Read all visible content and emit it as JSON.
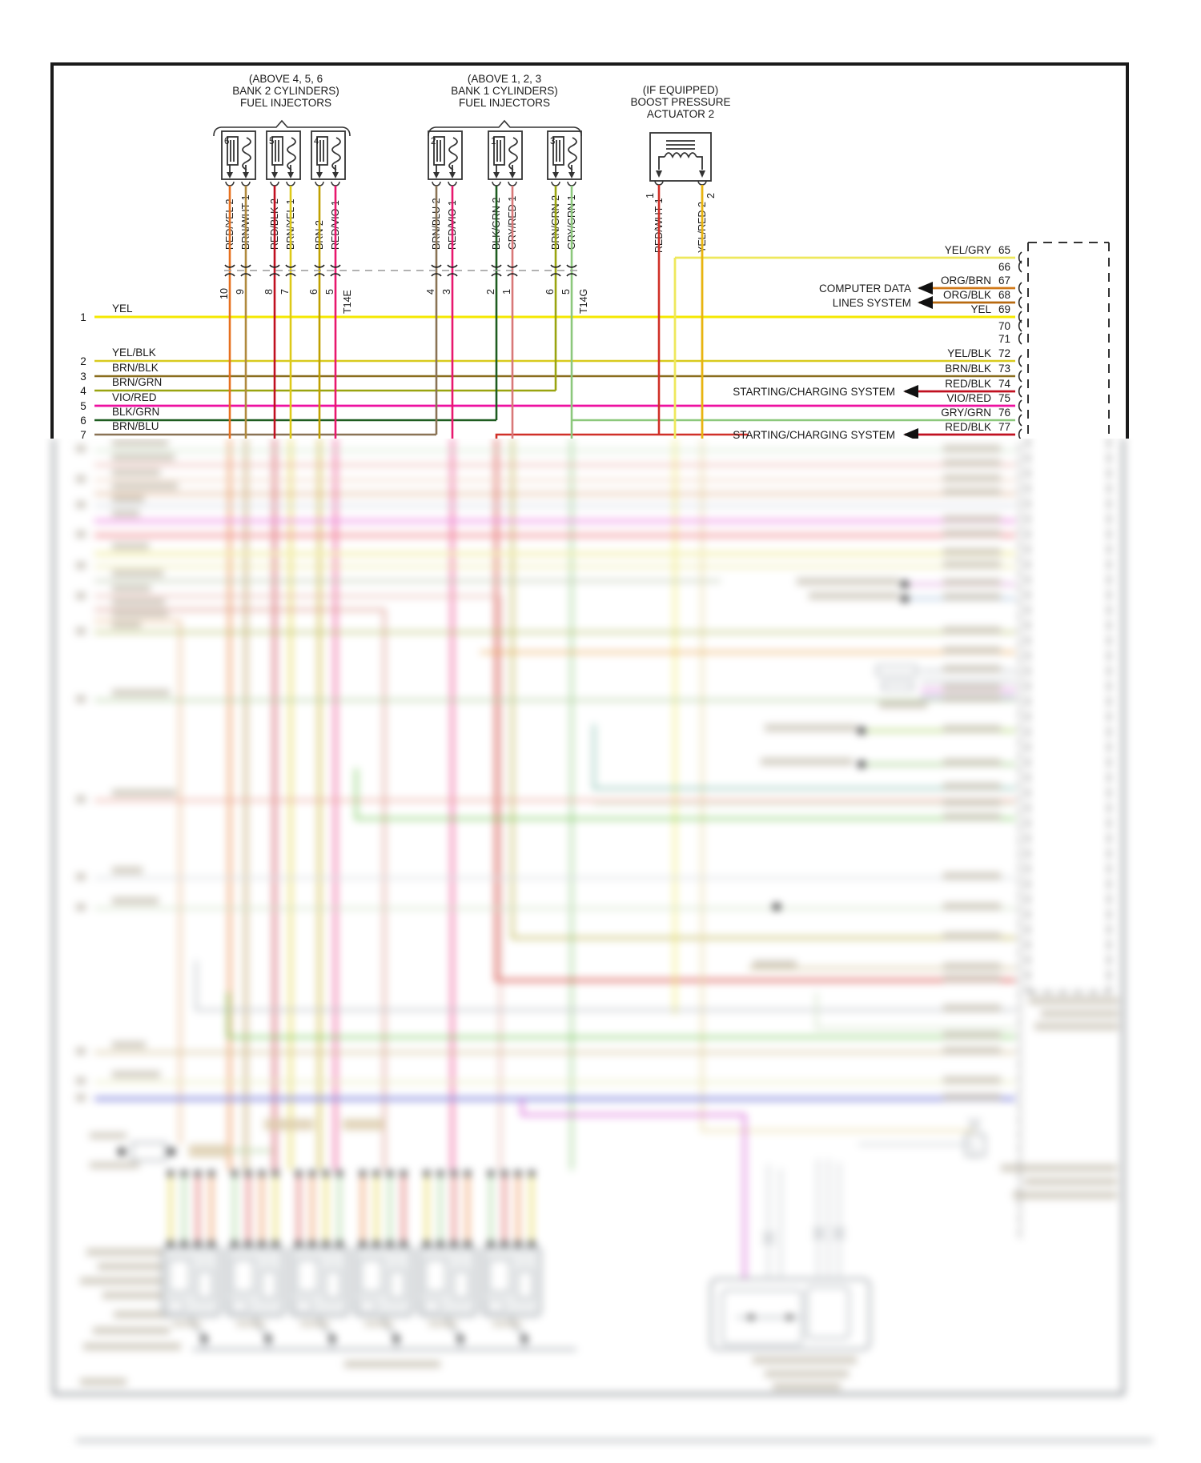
{
  "diagram_title": "Fuel injector and boost pressure actuator wiring diagram",
  "colors": {
    "page_border": "#1a1a1a",
    "yel": "#f5e800",
    "yel_blk": "#d8ca1e",
    "brn_blk": "#8a6d1e",
    "brn_grn": "#9aa410",
    "vio_red": "#ee10a0",
    "blk_grn": "#1e5c20",
    "brn_blu": "#8a7355",
    "red_yel": "#e6701e",
    "brn_wht": "#b08a3e",
    "red_blk": "#c01020",
    "brn_yel": "#ddc918",
    "brn": "#c0a000",
    "red_vio": "#e8186e",
    "gry_red": "#d87878",
    "gry_grn": "#8cc87c",
    "brn_grn_wire": "#9aa410",
    "red_wht": "#d03028",
    "yel_red": "#e8b410",
    "yel_gry": "#eee85c",
    "org_brn": "#d07818",
    "org_blk": "#b86a10"
  },
  "injector_groups": [
    {
      "title_lines": [
        "(ABOVE 4, 5, 6",
        "BANK 2 CYLINDERS)",
        "FUEL INJECTORS"
      ],
      "injectors": [
        {
          "number": "6",
          "wires": [
            {
              "label": "RED/YEL  2"
            },
            {
              "label": "BRN/WHT  1"
            }
          ]
        },
        {
          "number": "5",
          "wires": [
            {
              "label": "RED/BLK  2"
            },
            {
              "label": "BRN/YEL  1"
            }
          ]
        },
        {
          "number": "4",
          "wires": [
            {
              "label": "BRN  2"
            },
            {
              "label": "RED/VIO  1"
            }
          ]
        }
      ]
    },
    {
      "title_lines": [
        "(ABOVE 1, 2, 3",
        "BANK 1 CYLINDERS)",
        "FUEL INJECTORS"
      ],
      "injectors": [
        {
          "number": "2",
          "wires": [
            {
              "label": "BRN/BLU  2"
            },
            {
              "label": "RED/VIO  1"
            }
          ]
        },
        {
          "number": "1",
          "wires": [
            {
              "label": "BLK/GRN  2"
            },
            {
              "label": "GRY/RED  1"
            }
          ]
        },
        {
          "number": "3",
          "wires": [
            {
              "label": "BRN/GRN  2"
            },
            {
              "label": "GRY/GRN  1"
            }
          ]
        }
      ]
    }
  ],
  "boost_actuator": {
    "title_lines": [
      "(IF EQUIPPED)",
      "BOOST PRESSURE",
      "ACTUATOR 2"
    ],
    "wires": [
      {
        "label": "RED/WHT  1"
      },
      {
        "label": "YEL/RED  2"
      }
    ]
  },
  "connectors": [
    {
      "name": "T14E",
      "pins": [
        "10",
        "9",
        "8",
        "7",
        "6",
        "5"
      ]
    },
    {
      "name": "T14G",
      "pins": [
        "4",
        "3",
        "2",
        "1",
        "6",
        "5"
      ]
    }
  ],
  "left_rows": [
    {
      "num": "1",
      "label": "YEL"
    },
    {
      "num": "2",
      "label": "YEL/BLK"
    },
    {
      "num": "3",
      "label": "BRN/BLK"
    },
    {
      "num": "4",
      "label": "BRN/GRN"
    },
    {
      "num": "5",
      "label": "VIO/RED"
    },
    {
      "num": "6",
      "label": "BLK/GRN"
    },
    {
      "num": "7",
      "label": "BRN/BLU"
    }
  ],
  "right_pins": [
    {
      "num": "65",
      "label": "YEL/GRY"
    },
    {
      "num": "66",
      "label": ""
    },
    {
      "num": "67",
      "label": "ORG/BRN"
    },
    {
      "num": "68",
      "label": "ORG/BLK"
    },
    {
      "num": "69",
      "label": "YEL"
    },
    {
      "num": "70",
      "label": ""
    },
    {
      "num": "71",
      "label": ""
    },
    {
      "num": "72",
      "label": "YEL/BLK"
    },
    {
      "num": "73",
      "label": "BRN/BLK"
    },
    {
      "num": "74",
      "label": "RED/BLK"
    },
    {
      "num": "75",
      "label": "VIO/RED"
    },
    {
      "num": "76",
      "label": "GRY/GRN"
    },
    {
      "num": "77",
      "label": "RED/BLK"
    }
  ],
  "system_callouts": [
    {
      "text": "COMPUTER DATA"
    },
    {
      "text": "LINES SYSTEM"
    },
    {
      "text": "STARTING/CHARGING SYSTEM"
    },
    {
      "text": "STARTING/CHARGING SYSTEM"
    }
  ]
}
